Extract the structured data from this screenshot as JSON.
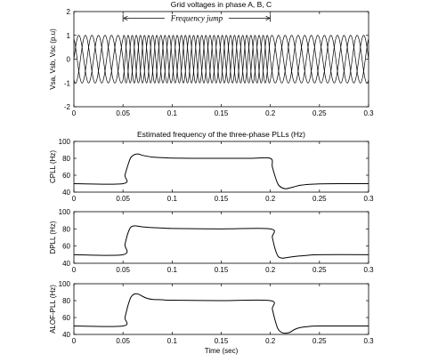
{
  "chart_data": [
    {
      "type": "line",
      "title": "Grid voltages in phase A, B, C",
      "xlabel": "",
      "ylabel": "Vsa, Vsb, Vsc (p.u)",
      "xlim": [
        0,
        0.3
      ],
      "ylim": [
        -2,
        2
      ],
      "x_ticks": [
        "0",
        "0.05",
        "0.1",
        "0.15",
        "0.2",
        "0.25",
        "0.3"
      ],
      "y_ticks": [
        "-2",
        "-1",
        "0",
        "1",
        "2"
      ],
      "series": [
        {
          "amplitude": 1,
          "phase_deg": 0
        },
        {
          "amplitude": 1,
          "phase_deg": -120
        },
        {
          "amplitude": 1,
          "phase_deg": 120
        }
      ],
      "frequency_hz": {
        "before_jump": 50,
        "during_jump": 80,
        "after_jump": 50
      },
      "jump_start": 0.05,
      "jump_end": 0.2,
      "annotation": {
        "text": "Frequency jump",
        "x_start": 0.05,
        "x_end": 0.2,
        "y": 1.72
      }
    },
    {
      "type": "line",
      "title": "Estimated frequency of the three-phase PLLs (Hz)",
      "xlabel": "",
      "ylabel": "CPLL (Hz)",
      "xlim": [
        0,
        0.3
      ],
      "ylim": [
        40,
        100
      ],
      "x_ticks": [
        "0",
        "0.05",
        "0.1",
        "0.15",
        "0.2",
        "0.25",
        "0.3"
      ],
      "y_ticks": [
        "40",
        "60",
        "80",
        "100"
      ],
      "x": [
        0,
        0.05,
        0.052,
        0.055,
        0.058,
        0.062,
        0.066,
        0.07,
        0.08,
        0.09,
        0.1,
        0.12,
        0.15,
        0.18,
        0.2,
        0.202,
        0.205,
        0.208,
        0.212,
        0.216,
        0.22,
        0.225,
        0.23,
        0.24,
        0.25,
        0.27,
        0.3
      ],
      "y": [
        50,
        50,
        60,
        72,
        81,
        84.5,
        85,
        83.5,
        81.5,
        80.8,
        80.3,
        80,
        80,
        80,
        80,
        70,
        58,
        49,
        45,
        44,
        45,
        46.5,
        48,
        49.2,
        49.8,
        50,
        50
      ]
    },
    {
      "type": "line",
      "title": "",
      "xlabel": "",
      "ylabel": "DPLL (Hz)",
      "xlim": [
        0,
        0.3
      ],
      "ylim": [
        40,
        100
      ],
      "x_ticks": [
        "0",
        "0.05",
        "0.1",
        "0.15",
        "0.2",
        "0.25",
        "0.3"
      ],
      "y_ticks": [
        "40",
        "60",
        "80",
        "100"
      ],
      "x": [
        0,
        0.05,
        0.052,
        0.055,
        0.058,
        0.062,
        0.066,
        0.07,
        0.08,
        0.09,
        0.1,
        0.15,
        0.2,
        0.202,
        0.205,
        0.208,
        0.212,
        0.216,
        0.222,
        0.23,
        0.24,
        0.25,
        0.3
      ],
      "y": [
        50,
        50,
        62,
        75,
        82,
        83.5,
        83,
        82.3,
        81.5,
        81,
        80.5,
        80,
        80,
        70,
        56,
        48,
        46,
        46.5,
        47.5,
        48.5,
        49.5,
        50,
        50
      ]
    },
    {
      "type": "line",
      "title": "",
      "xlabel": "Time (sec)",
      "ylabel": "ALOF-PLL (Hz)",
      "xlim": [
        0,
        0.3
      ],
      "ylim": [
        40,
        100
      ],
      "x_ticks": [
        "0",
        "0.05",
        "0.1",
        "0.15",
        "0.2",
        "0.25",
        "0.3"
      ],
      "y_ticks": [
        "40",
        "60",
        "80",
        "100"
      ],
      "x": [
        0,
        0.05,
        0.052,
        0.055,
        0.058,
        0.062,
        0.066,
        0.07,
        0.075,
        0.08,
        0.09,
        0.1,
        0.15,
        0.2,
        0.202,
        0.205,
        0.208,
        0.212,
        0.216,
        0.22,
        0.224,
        0.23,
        0.24,
        0.25,
        0.3
      ],
      "y": [
        50,
        50,
        60,
        74,
        84,
        88,
        87.5,
        85,
        82.5,
        81.5,
        81,
        80.5,
        80,
        80,
        70,
        56,
        46,
        42,
        41.5,
        42.5,
        45.5,
        48,
        49.5,
        50,
        50
      ]
    }
  ]
}
